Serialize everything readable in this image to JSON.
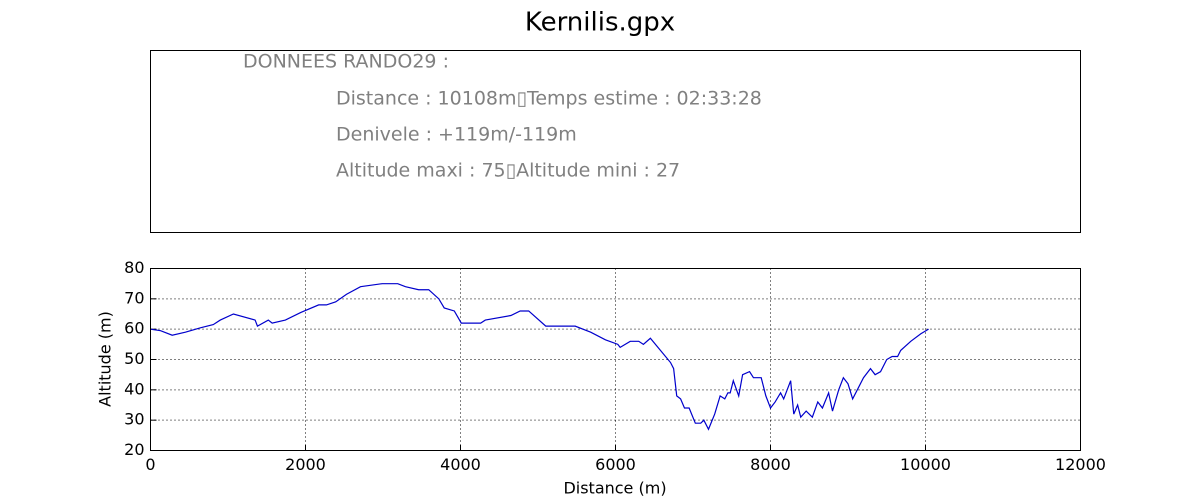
{
  "info_panel": {
    "heading": "DONNEES RANDO29  :",
    "lines": [
      "Distance : 10108m▯Temps estime : 02:33:28",
      "Denivele : +119m/-119m",
      "Altitude maxi : 75▯Altitude mini : 27"
    ]
  },
  "chart_data": {
    "type": "line",
    "title": "Kernilis.gpx",
    "x_label": "Distance (m)",
    "y_label": "Altitude (m)",
    "x": [
      0,
      130,
      280,
      450,
      650,
      810,
      900,
      1070,
      1350,
      1380,
      1520,
      1570,
      1740,
      1940,
      2170,
      2270,
      2390,
      2530,
      2710,
      2990,
      3190,
      3290,
      3460,
      3590,
      3720,
      3790,
      3920,
      4010,
      4260,
      4320,
      4650,
      4770,
      4880,
      5100,
      5480,
      5680,
      5870,
      6030,
      6060,
      6190,
      6300,
      6360,
      6450,
      6580,
      6710,
      6750,
      6790,
      6840,
      6890,
      6950,
      7030,
      7100,
      7140,
      7200,
      7280,
      7350,
      7410,
      7450,
      7480,
      7520,
      7590,
      7640,
      7730,
      7780,
      7830,
      7880,
      7940,
      8000,
      8060,
      8130,
      8170,
      8260,
      8300,
      8350,
      8390,
      8460,
      8540,
      8610,
      8670,
      8750,
      8800,
      8880,
      8940,
      9000,
      9060,
      9140,
      9200,
      9290,
      9350,
      9420,
      9500,
      9570,
      9640,
      9680,
      9810,
      9940,
      10040
    ],
    "series": [
      {
        "name": "Altitude",
        "color": "#0000cc",
        "values": [
          60,
          59.5,
          58,
          59,
          60.5,
          61.5,
          63,
          65,
          63,
          61,
          63,
          62,
          63,
          65.5,
          68,
          68,
          69,
          71.5,
          74,
          75,
          75,
          74,
          73,
          73,
          70,
          67,
          66,
          62,
          62,
          63,
          64.5,
          66,
          66,
          61,
          61,
          59,
          56.5,
          55,
          54,
          56,
          56,
          55,
          57,
          53,
          49,
          47,
          38,
          37,
          34,
          34,
          29,
          29,
          30,
          27,
          32,
          38,
          37,
          39,
          39,
          43,
          38,
          45,
          46,
          44,
          44,
          44,
          38,
          34,
          36,
          39,
          37,
          43,
          32,
          35,
          31,
          33,
          31,
          36,
          34,
          39,
          33,
          40,
          44,
          42,
          37,
          41,
          44,
          47,
          45,
          46,
          50,
          51,
          51,
          53,
          56,
          58.5,
          60
        ]
      }
    ],
    "xlim": [
      0,
      12000
    ],
    "xticks": [
      0,
      2000,
      4000,
      6000,
      8000,
      10000,
      12000
    ],
    "ylim": [
      20,
      80
    ],
    "yticks": [
      20,
      30,
      40,
      50,
      60,
      70,
      80
    ],
    "grid": true
  }
}
